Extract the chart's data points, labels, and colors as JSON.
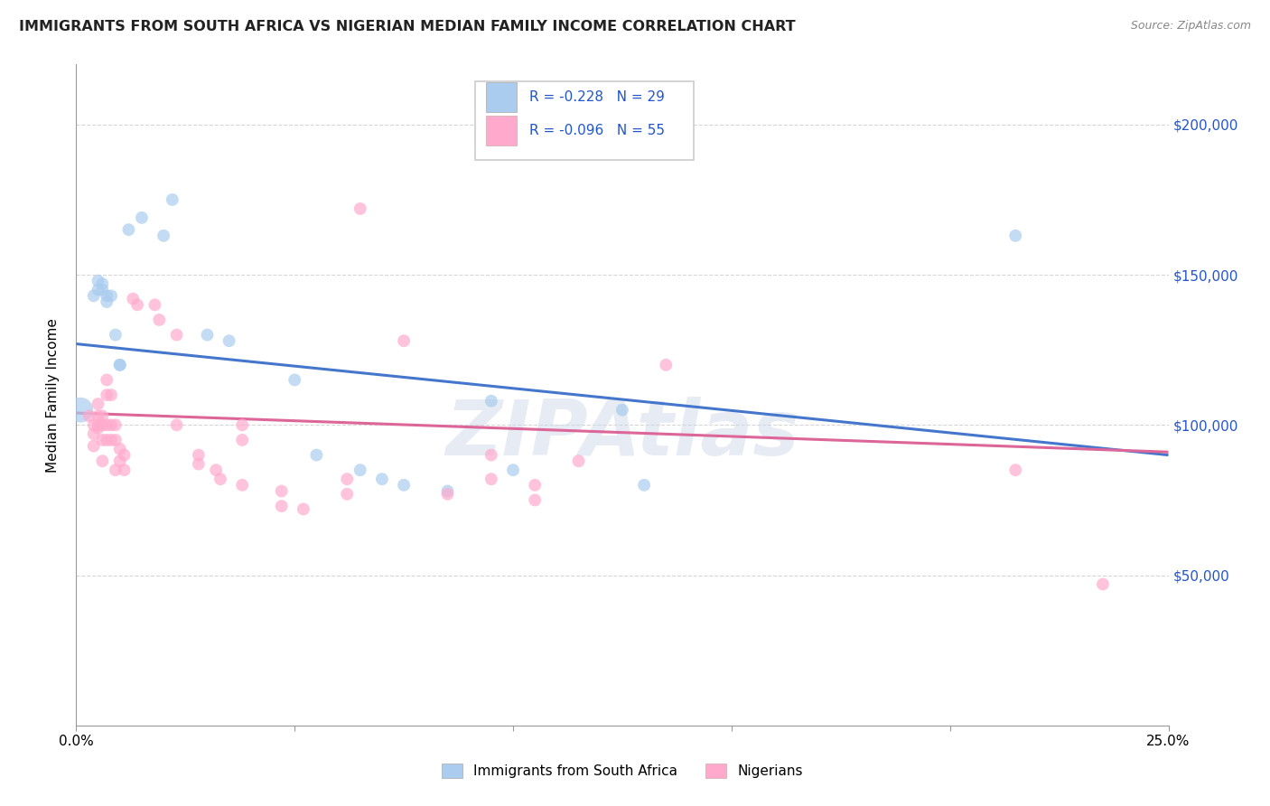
{
  "title": "IMMIGRANTS FROM SOUTH AFRICA VS NIGERIAN MEDIAN FAMILY INCOME CORRELATION CHART",
  "source": "Source: ZipAtlas.com",
  "ylabel": "Median Family Income",
  "yticks": [
    0,
    50000,
    100000,
    150000,
    200000
  ],
  "ytick_labels": [
    "",
    "$50,000",
    "$100,000",
    "$150,000",
    "$200,000"
  ],
  "xtick_positions": [
    0.0,
    0.05,
    0.1,
    0.15,
    0.2,
    0.25
  ],
  "xtick_labels": [
    "0.0%",
    "",
    "",
    "",
    "",
    "25.0%"
  ],
  "xlim": [
    0.0,
    0.25
  ],
  "ylim": [
    0,
    220000
  ],
  "background_color": "#ffffff",
  "grid_color": "#cccccc",
  "legend_text_color": "#2255cc",
  "legend": {
    "r1": "-0.228",
    "n1": "29",
    "r2": "-0.096",
    "n2": "55",
    "color1": "#aaccee",
    "color2": "#ffaacc"
  },
  "blue_line": {
    "x0": 0.0,
    "y0": 127000,
    "x1": 0.25,
    "y1": 90000,
    "color": "#4477cc"
  },
  "pink_line": {
    "x0": 0.0,
    "y0": 104000,
    "x1": 0.25,
    "y1": 91000,
    "color": "#dd6699"
  },
  "blue_dots": [
    [
      0.001,
      105000
    ],
    [
      0.004,
      143000
    ],
    [
      0.005,
      148000
    ],
    [
      0.005,
      145000
    ],
    [
      0.006,
      147000
    ],
    [
      0.006,
      145000
    ],
    [
      0.007,
      143000
    ],
    [
      0.007,
      141000
    ],
    [
      0.008,
      143000
    ],
    [
      0.009,
      130000
    ],
    [
      0.01,
      120000
    ],
    [
      0.01,
      120000
    ],
    [
      0.012,
      165000
    ],
    [
      0.015,
      169000
    ],
    [
      0.02,
      163000
    ],
    [
      0.022,
      175000
    ],
    [
      0.03,
      130000
    ],
    [
      0.035,
      128000
    ],
    [
      0.05,
      115000
    ],
    [
      0.055,
      90000
    ],
    [
      0.065,
      85000
    ],
    [
      0.07,
      82000
    ],
    [
      0.085,
      78000
    ],
    [
      0.095,
      108000
    ],
    [
      0.125,
      105000
    ],
    [
      0.13,
      80000
    ],
    [
      0.215,
      163000
    ],
    [
      0.1,
      85000
    ],
    [
      0.075,
      80000
    ]
  ],
  "pink_dots": [
    [
      0.003,
      103000
    ],
    [
      0.004,
      100000
    ],
    [
      0.004,
      97000
    ],
    [
      0.004,
      93000
    ],
    [
      0.005,
      100000
    ],
    [
      0.005,
      103000
    ],
    [
      0.005,
      107000
    ],
    [
      0.005,
      99000
    ],
    [
      0.006,
      103000
    ],
    [
      0.006,
      100000
    ],
    [
      0.006,
      95000
    ],
    [
      0.006,
      88000
    ],
    [
      0.007,
      115000
    ],
    [
      0.007,
      110000
    ],
    [
      0.007,
      100000
    ],
    [
      0.007,
      95000
    ],
    [
      0.008,
      110000
    ],
    [
      0.008,
      100000
    ],
    [
      0.008,
      95000
    ],
    [
      0.009,
      100000
    ],
    [
      0.009,
      95000
    ],
    [
      0.009,
      85000
    ],
    [
      0.01,
      92000
    ],
    [
      0.01,
      88000
    ],
    [
      0.011,
      90000
    ],
    [
      0.011,
      85000
    ],
    [
      0.013,
      142000
    ],
    [
      0.014,
      140000
    ],
    [
      0.018,
      140000
    ],
    [
      0.019,
      135000
    ],
    [
      0.023,
      130000
    ],
    [
      0.023,
      100000
    ],
    [
      0.028,
      90000
    ],
    [
      0.028,
      87000
    ],
    [
      0.032,
      85000
    ],
    [
      0.033,
      82000
    ],
    [
      0.038,
      100000
    ],
    [
      0.038,
      95000
    ],
    [
      0.038,
      80000
    ],
    [
      0.047,
      78000
    ],
    [
      0.047,
      73000
    ],
    [
      0.052,
      72000
    ],
    [
      0.062,
      82000
    ],
    [
      0.062,
      77000
    ],
    [
      0.065,
      172000
    ],
    [
      0.075,
      128000
    ],
    [
      0.085,
      77000
    ],
    [
      0.095,
      82000
    ],
    [
      0.095,
      90000
    ],
    [
      0.105,
      80000
    ],
    [
      0.105,
      75000
    ],
    [
      0.115,
      88000
    ],
    [
      0.135,
      120000
    ],
    [
      0.215,
      85000
    ],
    [
      0.235,
      47000
    ]
  ],
  "watermark": "ZIPAtlas",
  "dot_size": 100,
  "big_dot_size": 400
}
